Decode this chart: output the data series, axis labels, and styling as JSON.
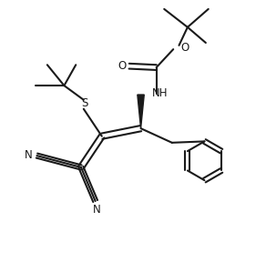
{
  "bg_color": "#ffffff",
  "bond_color": "#1a1a1a",
  "lw": 1.5,
  "figsize": [
    2.92,
    2.88
  ],
  "dpi": 100,
  "xlim": [
    0,
    10
  ],
  "ylim": [
    0,
    10
  ]
}
